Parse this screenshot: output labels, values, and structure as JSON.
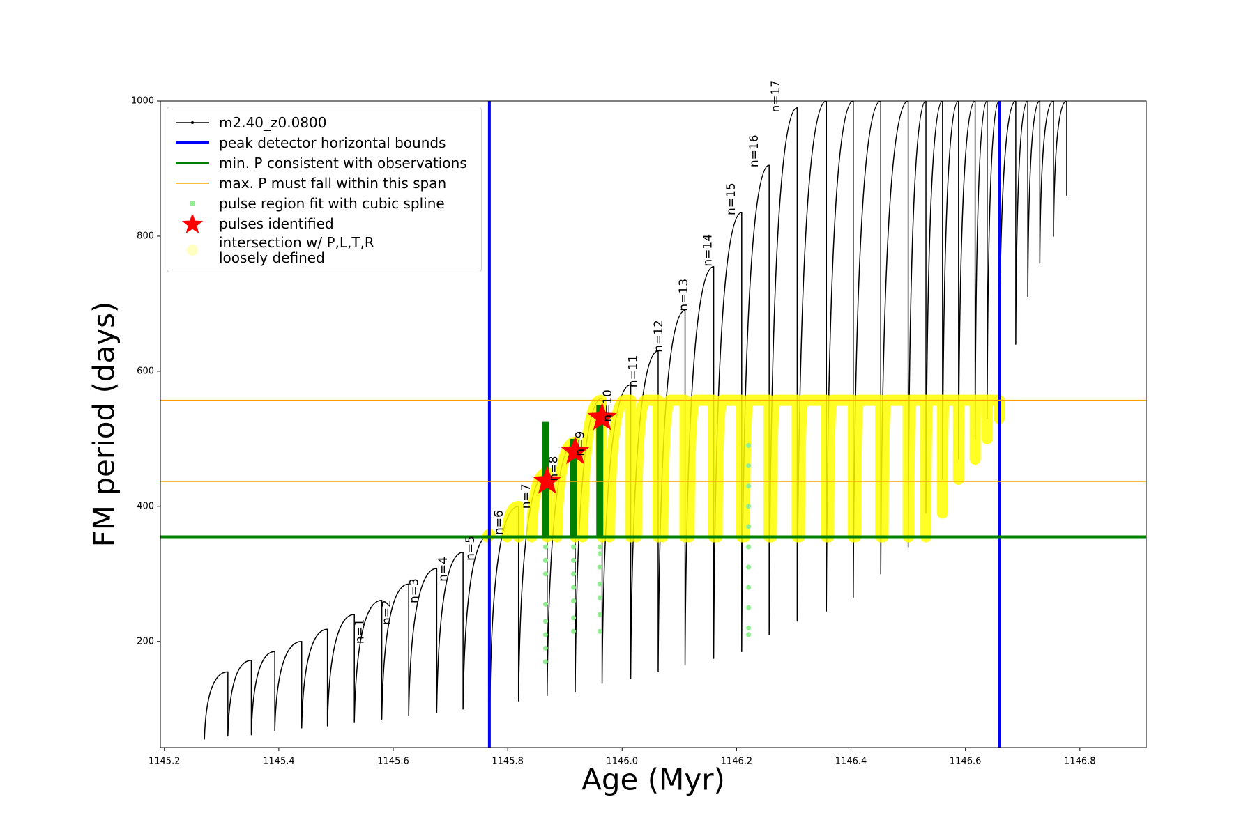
{
  "chart_data": {
    "type": "line",
    "xlabel": "Age (Myr)",
    "ylabel": "FM period (days)",
    "xlim": [
      1145.193,
      1146.916
    ],
    "ylim": [
      43,
      1000
    ],
    "xticks": [
      1145.2,
      1145.4,
      1145.6,
      1145.8,
      {
        "value": 1146,
        "label": "1146.0"
      },
      1146.2,
      1146.4,
      1146.6,
      1146.8
    ],
    "yticks": [
      200,
      400,
      600,
      800,
      1000
    ],
    "series": [
      {
        "name": "m2.40_z0.0800",
        "kind": "line",
        "color": "#000000",
        "linewidth": 1.5,
        "x": [
          1145.27,
          1145.311,
          1145.311,
          1145.352,
          1145.352,
          1145.393,
          1145.393,
          1145.44,
          1145.44,
          1145.485,
          1145.485,
          1145.532,
          1145.532,
          1145.58,
          1145.58,
          1145.627,
          1145.627,
          1145.676,
          1145.676,
          1145.722,
          1145.722,
          1145.769,
          1145.769,
          1145.819,
          1145.819,
          1145.869,
          1145.869,
          1145.918,
          1145.918,
          1145.965,
          1145.965,
          1146.015,
          1146.015,
          1146.063,
          1146.063,
          1146.11,
          1146.11,
          1146.16,
          1146.16,
          1146.209,
          1146.209,
          1146.257,
          1146.257,
          1146.306,
          1146.306,
          1146.357,
          1146.357,
          1146.404,
          1146.404,
          1146.452,
          1146.452,
          1146.5,
          1146.5,
          1146.531,
          1146.531,
          1146.56,
          1146.56,
          1146.588,
          1146.588,
          1146.617,
          1146.617,
          1146.638,
          1146.638,
          1146.659,
          1146.659,
          1146.688,
          1146.688,
          1146.709,
          1146.709,
          1146.73,
          1146.73,
          1146.754,
          1146.754,
          1146.777,
          1146.777
        ],
        "y": [
          55,
          155,
          60,
          172,
          62,
          185,
          68,
          200,
          72,
          218,
          75,
          240,
          80,
          261,
          85,
          285,
          90,
          308,
          95,
          332,
          100,
          358,
          105,
          400,
          112,
          450,
          120,
          495,
          125,
          560,
          138,
          580,
          145,
          630,
          155,
          690,
          165,
          755,
          175,
          835,
          185,
          905,
          210,
          990,
          230,
          1000,
          245,
          1000,
          265,
          1000,
          300,
          1000,
          340,
          1000,
          390,
          1000,
          440,
          1000,
          470,
          1000,
          500,
          1000,
          530,
          1000,
          600,
          1000,
          640,
          1000,
          710,
          1000,
          760,
          1000,
          800,
          1000,
          860
        ]
      },
      {
        "name": "peak detector horizontal bounds",
        "kind": "vline",
        "color": "#0000ff",
        "linewidth": 4,
        "x": [
          1145.768,
          1146.659
        ]
      },
      {
        "name": "min. P consistent with observations",
        "kind": "hline",
        "color": "#008000",
        "linewidth": 4,
        "y": [
          355
        ]
      },
      {
        "name": "max. P must fall within this span",
        "kind": "hline",
        "color": "#ffa500",
        "linewidth": 1.5,
        "y": [
          437,
          557
        ]
      },
      {
        "name": "pulse region fit with cubic spline",
        "kind": "scatter",
        "color": "#90ee90",
        "x": [
          1145.866,
          1145.866,
          1145.866,
          1145.866,
          1145.866,
          1145.866,
          1145.866,
          1145.866,
          1145.915,
          1145.915,
          1145.915,
          1145.915,
          1145.915,
          1145.915,
          1145.915,
          1145.961,
          1145.961,
          1145.961,
          1145.961,
          1145.961,
          1145.961,
          1145.961,
          1146.221,
          1146.221,
          1146.221,
          1146.221,
          1146.221,
          1146.221,
          1146.221,
          1146.221,
          1146.221,
          1146.221,
          1146.221
        ],
        "y": [
          340,
          320,
          300,
          255,
          230,
          210,
          190,
          170,
          340,
          320,
          300,
          280,
          260,
          235,
          215,
          340,
          330,
          310,
          285,
          265,
          240,
          215,
          490,
          460,
          430,
          400,
          370,
          340,
          310,
          280,
          250,
          220,
          210
        ]
      },
      {
        "name": "pulses identified",
        "kind": "star",
        "color": "#ff0000",
        "x": [
          1145.869,
          1145.918,
          1145.965
        ],
        "y": [
          437,
          481,
          531
        ]
      },
      {
        "name": "intersection w/ P,L,T,R\nloosely defined",
        "kind": "band",
        "color": "#ffff00",
        "linewidth": 16,
        "x": [
          1145.765,
          1145.769,
          null,
          1145.799,
          1145.819,
          1145.819,
          null,
          1145.842,
          1145.869,
          1145.869,
          null,
          1145.886,
          1145.918,
          1145.918,
          null,
          1145.931,
          1145.963,
          1145.965,
          null,
          1145.978,
          1146.005,
          1146.015,
          1146.015,
          null,
          1146.025,
          1146.041,
          1146.063,
          1146.063,
          null,
          1146.071,
          1146.084,
          1146.11,
          1146.11,
          null,
          1146.117,
          1146.128,
          1146.16,
          1146.16,
          null,
          1146.166,
          1146.175,
          1146.209,
          1146.209,
          null,
          1146.214,
          1146.221,
          1146.257,
          1146.257,
          null,
          1146.261,
          1146.268,
          1146.306,
          1146.306,
          null,
          1146.31,
          1146.317,
          1146.357,
          1146.357,
          null,
          1146.361,
          1146.367,
          1146.404,
          1146.404,
          null,
          1146.408,
          1146.414,
          1146.452,
          1146.452,
          null,
          1146.456,
          1146.462,
          1146.5,
          1146.5,
          null,
          1146.501,
          1146.506,
          1146.531,
          1146.531,
          null,
          1146.531,
          1146.535,
          1146.56,
          1146.56,
          null,
          1146.56,
          1146.563,
          1146.588,
          1146.588,
          null,
          1146.588,
          1146.59,
          1146.617,
          1146.617,
          null,
          1146.617,
          1146.619,
          1146.638,
          1146.638,
          null,
          1146.638,
          1146.639,
          1146.659,
          1146.659
        ],
        "y": [
          355,
          358,
          null,
          355,
          400,
          355,
          null,
          355,
          450,
          355,
          null,
          355,
          495,
          355,
          null,
          355,
          557,
          355,
          null,
          355,
          557,
          557,
          355,
          null,
          355,
          557,
          557,
          355,
          null,
          355,
          557,
          557,
          355,
          null,
          355,
          557,
          557,
          355,
          null,
          355,
          557,
          557,
          355,
          null,
          355,
          557,
          557,
          355,
          null,
          355,
          557,
          557,
          355,
          null,
          355,
          557,
          557,
          355,
          null,
          355,
          557,
          557,
          355,
          null,
          355,
          557,
          557,
          355,
          null,
          355,
          557,
          557,
          355,
          null,
          355,
          557,
          557,
          355,
          null,
          390,
          557,
          557,
          390,
          null,
          440,
          557,
          557,
          440,
          null,
          470,
          557,
          557,
          470,
          null,
          500,
          557,
          557,
          500,
          null,
          530,
          557,
          557,
          530
        ]
      },
      {
        "kind": "line",
        "color": "#008000",
        "linewidth": 10,
        "x": [
          1145.866,
          1145.866,
          null,
          1145.915,
          1145.915,
          null,
          1145.961,
          1145.961
        ],
        "y": [
          355,
          525,
          null,
          355,
          500,
          null,
          355,
          550
        ]
      }
    ],
    "annotations": [
      {
        "text": "n=1",
        "x": 1145.542,
        "y": 215
      },
      {
        "text": "n=2",
        "x": 1145.589,
        "y": 243
      },
      {
        "text": "n=3",
        "x": 1145.637,
        "y": 275
      },
      {
        "text": "n=4",
        "x": 1145.688,
        "y": 307
      },
      {
        "text": "n=5",
        "x": 1145.735,
        "y": 338
      },
      {
        "text": "n=6",
        "x": 1145.785,
        "y": 376
      },
      {
        "text": "n=7",
        "x": 1145.833,
        "y": 415
      },
      {
        "text": "n=8",
        "x": 1145.881,
        "y": 456
      },
      {
        "text": "n=9",
        "x": 1145.927,
        "y": 493
      },
      {
        "text": "n=10",
        "x": 1145.975,
        "y": 549
      },
      {
        "text": "n=11",
        "x": 1146.02,
        "y": 600
      },
      {
        "text": "n=12",
        "x": 1146.064,
        "y": 652
      },
      {
        "text": "n=13",
        "x": 1146.108,
        "y": 713
      },
      {
        "text": "n=14",
        "x": 1146.15,
        "y": 779
      },
      {
        "text": "n=15",
        "x": 1146.191,
        "y": 855
      },
      {
        "text": "n=16",
        "x": 1146.231,
        "y": 926
      },
      {
        "text": "n=17",
        "x": 1146.269,
        "y": 1007
      }
    ],
    "legend_position": "upper left"
  }
}
